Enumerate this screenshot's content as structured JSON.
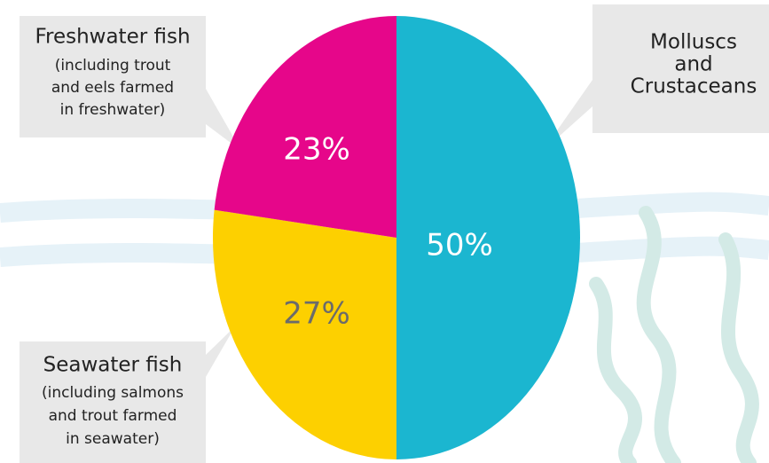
{
  "chart_data": {
    "type": "pie",
    "categories": [
      [
        "Molluscs",
        "and",
        "Crustaceans"
      ],
      [
        "Seawater fish"
      ],
      [
        "Freshwater fish"
      ]
    ],
    "notes": [
      [],
      [
        "(including salmons",
        "and trout farmed",
        "in seawater)"
      ],
      [
        "(including trout",
        "and eels farmed",
        "in freshwater)"
      ]
    ],
    "values": [
      50,
      27,
      23
    ],
    "value_labels": [
      "50%",
      "27%",
      "23%"
    ],
    "colors": [
      "#1bb6d0",
      "#fdd000",
      "#e6068a"
    ],
    "label_colors": [
      "#ffffff",
      "#6b6b6b",
      "#ffffff"
    ]
  }
}
